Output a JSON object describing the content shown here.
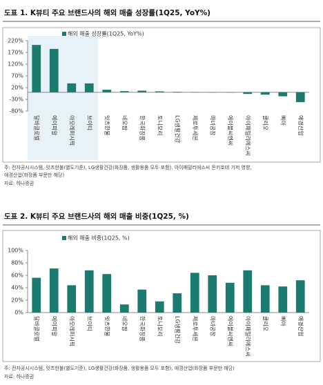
{
  "chart_data": [
    {
      "type": "bar",
      "title": "도표 1. K뷰티 주요 브랜드사의 해외 매출 성장률(1Q25, YoY%)",
      "categories": [
        "달바글로벌",
        "에이피알",
        "아모레퍼시픽",
        "브이티",
        "잇츠한불",
        "네오팜",
        "한국화장품",
        "토니모리",
        "LG생활건강",
        "제로투세븐",
        "마녀공장",
        "에이블씨엔씨",
        "아이패밀리에스씨",
        "클리오",
        "삐아",
        "애경산업"
      ],
      "series": [
        {
          "name": "해외 매출 성장률(1Q25, YoY%)",
          "color": "#1b7b6f",
          "values": [
            202,
            185,
            38,
            38,
            11,
            5,
            7,
            4,
            2,
            1,
            -1,
            -1,
            -7,
            -10,
            -17,
            -42
          ]
        }
      ],
      "ylim": [
        -80,
        220
      ],
      "yticks": [
        {
          "value": -80,
          "label": "-80%"
        },
        {
          "value": -30,
          "label": "-30%"
        },
        {
          "value": 20,
          "label": "20%"
        },
        {
          "value": 70,
          "label": "70%"
        },
        {
          "value": 120,
          "label": "120%"
        },
        {
          "value": 170,
          "label": "170%"
        },
        {
          "value": 220,
          "label": "220%"
        }
      ],
      "notes": [
        "주: 전자공시시스템, 잇츠한불(별도기준), LG생활건강(화장품, 생활용품 모두 포함), 아이패밀리에스씨 돈키호테 기저 영향,",
        "애경산업(화장품 부문만 해당)"
      ],
      "source": "자료: 하나증권"
    },
    {
      "type": "bar",
      "title": "도표 2. K뷰티 주요 브랜드사의 해외 매출 비중(1Q25, %)",
      "categories": [
        "달바글로벌",
        "에이피알",
        "아모레퍼시픽",
        "브이티",
        "잇츠한불",
        "네오팜",
        "한국화장품",
        "토니모리",
        "LG생활건강",
        "제로투세븐",
        "마녀공장",
        "에이블씨엔씨",
        "아이패밀리에스씨",
        "클리오",
        "삐아",
        "애경산업"
      ],
      "series": [
        {
          "name": "해외 매출 비중(1Q25, %)",
          "color": "#1b7b6f",
          "values": [
            56,
            71,
            44,
            68,
            62,
            13,
            37,
            18,
            31,
            64,
            60,
            48,
            68,
            44,
            42,
            52
          ]
        }
      ],
      "ylim": [
        0,
        100
      ],
      "yticks": [
        {
          "value": 0,
          "label": "0%"
        },
        {
          "value": 20,
          "label": "20%"
        },
        {
          "value": 40,
          "label": "40%"
        },
        {
          "value": 60,
          "label": "60%"
        },
        {
          "value": 80,
          "label": "80%"
        },
        {
          "value": 100,
          "label": "100%"
        }
      ],
      "notes": [
        "주: 전자공시시스템, 잇츠한불(별도기준), LG생활건강(화장품, 생활용품 모두 포함), 애경산업(화장품 부문만 해당)"
      ],
      "source": "자료: 하나증권"
    }
  ]
}
